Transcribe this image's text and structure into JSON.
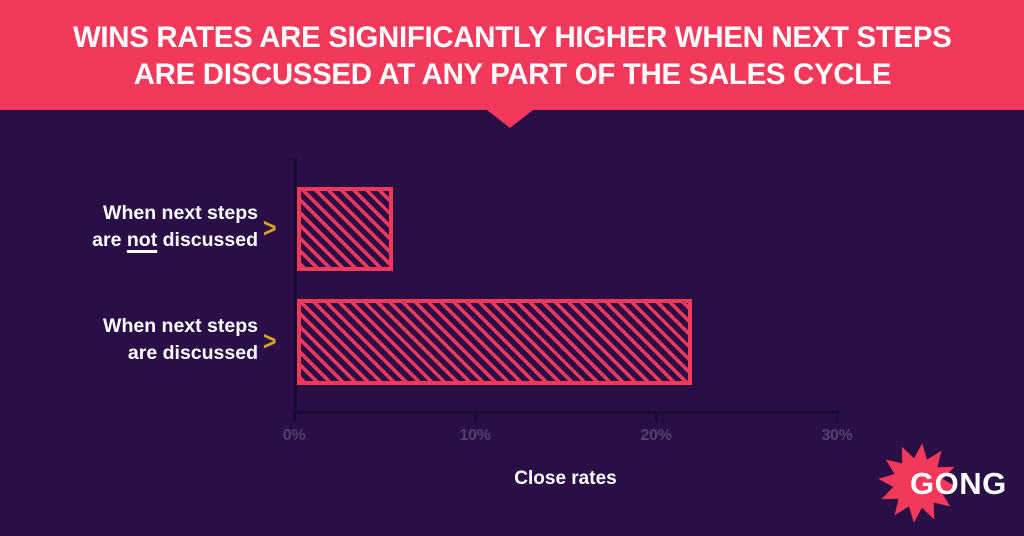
{
  "header": {
    "title_line1": "WINS RATES ARE SIGNIFICANTLY HIGHER WHEN NEXT STEPS",
    "title_line2": "ARE DISCUSSED AT ANY PART OF THE SALES CYCLE"
  },
  "chart_data": {
    "type": "bar",
    "orientation": "horizontal",
    "title": "WINS RATES ARE SIGNIFICANTLY HIGHER WHEN NEXT STEPS ARE DISCUSSED AT ANY PART OF THE SALES CYCLE",
    "categories": [
      "When next steps are not discussed",
      "When next steps are discussed"
    ],
    "values_percent": [
      5.3,
      21.9
    ],
    "xlabel": "Close rates",
    "x_ticks": [
      "0%",
      "10%",
      "20%",
      "30%"
    ],
    "x_tick_values": [
      0,
      10,
      20,
      30
    ],
    "xlim": [
      0,
      30
    ],
    "grid": false,
    "legend": false,
    "bar_fill": "diagonal-hatch"
  },
  "row_labels": {
    "bar1": {
      "line1": "When next steps",
      "line2_pre": "are ",
      "line2_underline": "not",
      "line2_post": " discussed"
    },
    "bar2": {
      "line1": "When next steps",
      "line2": "are discussed"
    }
  },
  "icons": {
    "chevron_right": ">"
  },
  "logo": {
    "text": "GONG"
  },
  "colors": {
    "accent_red": "#F3395B",
    "background": "#2A0E46",
    "axis_line": "#1C0A36",
    "tick_text": "#514070",
    "chevron_gold": "#D7A225",
    "text_white": "#FFFFFF"
  }
}
